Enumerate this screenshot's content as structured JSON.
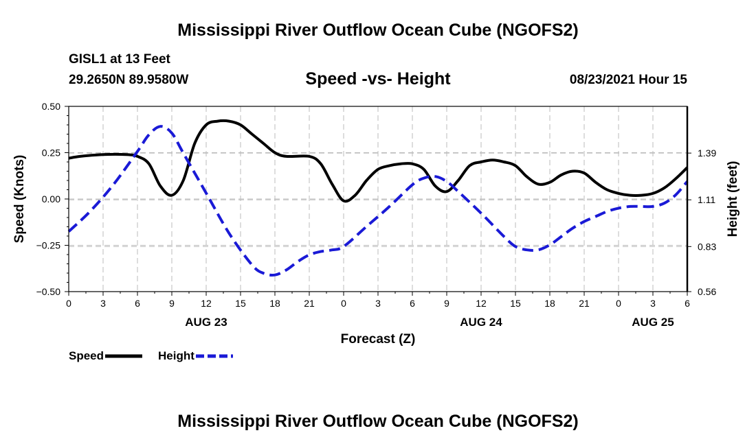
{
  "title": "Mississippi River Outflow Ocean Cube (NGOFS2)",
  "footer_title": "Mississippi River Outflow Ocean Cube (NGOFS2)",
  "station": {
    "name": "GISL1 at 13 Feet",
    "coords": "29.2650N  89.9580W",
    "timestamp": "08/23/2021 Hour 15"
  },
  "colors": {
    "speed": "#000000",
    "height": "#1a1ad6",
    "grid": "#bbbbbb"
  },
  "chart_data": {
    "type": "line",
    "title": "Speed -vs- Height",
    "xlabel": "Forecast (Z)",
    "ylabel": "Speed (Knots)",
    "y2label": "Height (feet)",
    "xlim": [
      0,
      54
    ],
    "ylim": [
      -0.5,
      0.5
    ],
    "y2lim": [
      0.56,
      1.67
    ],
    "x_ticks": [
      0,
      3,
      6,
      9,
      12,
      15,
      18,
      21,
      24,
      27,
      30,
      33,
      36,
      39,
      42,
      45,
      48,
      51,
      54
    ],
    "x_tick_labels": [
      "0",
      "3",
      "6",
      "9",
      "12",
      "15",
      "18",
      "21",
      "0",
      "3",
      "6",
      "9",
      "12",
      "15",
      "18",
      "21",
      "0",
      "3",
      "6"
    ],
    "y_ticks": [
      -0.5,
      -0.25,
      0.0,
      0.25,
      0.5
    ],
    "y_tick_labels": [
      "−0.50",
      "−0.25",
      "0.00",
      "0.25",
      "0.50"
    ],
    "y2_ticks": [
      0.56,
      0.83,
      1.11,
      1.39
    ],
    "y2_tick_labels": [
      "0.56",
      "0.83",
      "1.11",
      "1.39"
    ],
    "date_labels": [
      {
        "x": 12,
        "label": "AUG 23"
      },
      {
        "x": 36,
        "label": "AUG 24"
      },
      {
        "x": 51,
        "label": "AUG 25"
      }
    ],
    "grid": true,
    "legend": "bottom-left",
    "series": [
      {
        "name": "Speed",
        "axis": "left",
        "style": "solid",
        "x": [
          0,
          1,
          3,
          5,
          6,
          7,
          8,
          9,
          10,
          11,
          12,
          13,
          14,
          15,
          16,
          17,
          18,
          19,
          21,
          22,
          23,
          24,
          25,
          26,
          27,
          28,
          29,
          30,
          31,
          32,
          33,
          34,
          35,
          36,
          37,
          38,
          39,
          40,
          41,
          42,
          43,
          44,
          45,
          46,
          47,
          48,
          49,
          50,
          51,
          52,
          53,
          54
        ],
        "values": [
          0.22,
          0.23,
          0.24,
          0.24,
          0.23,
          0.19,
          0.07,
          0.02,
          0.1,
          0.3,
          0.4,
          0.42,
          0.42,
          0.4,
          0.35,
          0.3,
          0.25,
          0.23,
          0.23,
          0.19,
          0.08,
          -0.01,
          0.02,
          0.1,
          0.16,
          0.18,
          0.19,
          0.19,
          0.16,
          0.07,
          0.04,
          0.1,
          0.18,
          0.2,
          0.21,
          0.2,
          0.18,
          0.12,
          0.08,
          0.09,
          0.13,
          0.15,
          0.14,
          0.09,
          0.05,
          0.03,
          0.02,
          0.02,
          0.03,
          0.06,
          0.11,
          0.17
        ]
      },
      {
        "name": "Height",
        "axis": "right",
        "style": "dashed",
        "x": [
          0,
          2,
          4,
          6,
          7,
          8,
          9,
          10,
          12,
          14,
          16,
          17,
          18,
          19,
          20,
          21,
          22,
          23,
          24,
          26,
          28,
          30,
          31,
          32,
          33,
          34,
          36,
          38,
          39,
          40,
          41,
          42,
          43,
          44,
          45,
          46,
          47,
          48,
          49,
          50,
          51,
          52,
          53,
          54
        ],
        "values": [
          0.92,
          1.05,
          1.21,
          1.4,
          1.5,
          1.55,
          1.51,
          1.39,
          1.15,
          0.91,
          0.72,
          0.67,
          0.66,
          0.69,
          0.74,
          0.78,
          0.8,
          0.81,
          0.83,
          0.95,
          1.07,
          1.2,
          1.24,
          1.25,
          1.22,
          1.16,
          1.03,
          0.89,
          0.83,
          0.81,
          0.81,
          0.84,
          0.89,
          0.94,
          0.98,
          1.01,
          1.04,
          1.06,
          1.07,
          1.07,
          1.07,
          1.09,
          1.14,
          1.22
        ]
      }
    ]
  }
}
